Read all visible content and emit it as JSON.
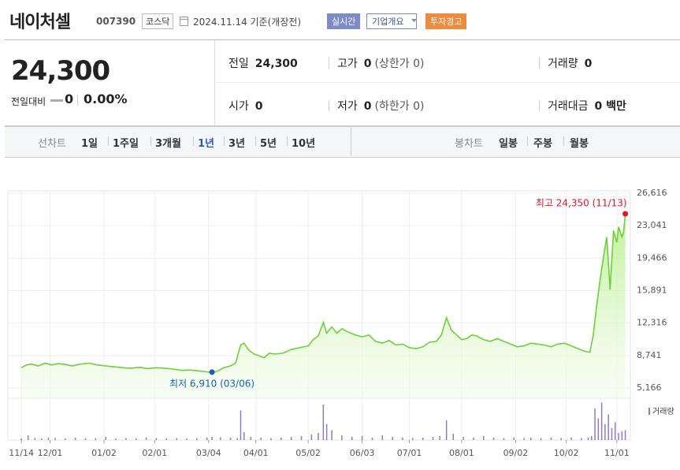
{
  "header": {
    "name": "네이처셀",
    "code": "007390",
    "market": "코스닥",
    "date_note": "2024.11.14 기준(개장전)",
    "buttons": [
      "실시간",
      "기업개요",
      "투자경고"
    ]
  },
  "summary": {
    "price": "24,300",
    "change_label": "전일대비",
    "change": "0",
    "change_pct": "0.00%",
    "cells": [
      {
        "label": "전일",
        "value": "24,300"
      },
      {
        "label": "고가",
        "value": "0",
        "note": "(상한가 0)"
      },
      {
        "label": "거래량",
        "value": "0"
      },
      {
        "label": "시가",
        "value": "0"
      },
      {
        "label": "저가",
        "value": "0",
        "note": "(하한가 0)"
      },
      {
        "label": "거래대금",
        "value": "0 백만"
      }
    ]
  },
  "tabs": {
    "line_label": "선차트",
    "line_periods": [
      "1일",
      "1주일",
      "3개월",
      "1년",
      "3년",
      "5년",
      "10년"
    ],
    "selected": "1년",
    "candle_label": "봉차트",
    "candle_periods": [
      "일봉",
      "주봉",
      "월봉"
    ]
  },
  "chart_data": [
    {
      "type": "line",
      "color": "#6fcf3b",
      "max_label": "최고 24,350 (11/13)",
      "max_color": "#e0162b",
      "min_label": "최저 6,910 (03/06)",
      "min_color": "#1a5fb4",
      "x": [
        0,
        3,
        6,
        10,
        14,
        18,
        22,
        26,
        30,
        35,
        40,
        45,
        50,
        55,
        60,
        65,
        70,
        75,
        80,
        85,
        90,
        95,
        100,
        105,
        110,
        113,
        116,
        120,
        124,
        127,
        130,
        132,
        135,
        138,
        141,
        144,
        147,
        150,
        155,
        160,
        165,
        170,
        173,
        176,
        179,
        181,
        184,
        187,
        190,
        194,
        198,
        202,
        206,
        210,
        214,
        218,
        222,
        226,
        230,
        234,
        238,
        242,
        246,
        249,
        252,
        255,
        258,
        261,
        264,
        267,
        270,
        274,
        278,
        282,
        286,
        290,
        294,
        298,
        302,
        306,
        310,
        314,
        318,
        322,
        326,
        330,
        334,
        337,
        339,
        341,
        343,
        345,
        347,
        349,
        351,
        353,
        354,
        356,
        357,
        358
      ],
      "values": [
        7400,
        7700,
        7800,
        7600,
        7900,
        7700,
        7850,
        7750,
        7600,
        7800,
        7900,
        7700,
        7600,
        7500,
        7400,
        7350,
        7450,
        7300,
        7400,
        7350,
        7250,
        7100,
        7150,
        7050,
        6950,
        6910,
        7000,
        7400,
        7600,
        7900,
        9900,
        10100,
        9300,
        8900,
        8700,
        8500,
        9000,
        8900,
        9000,
        9400,
        9600,
        9800,
        10500,
        10900,
        12400,
        11200,
        11900,
        11200,
        11700,
        11300,
        11000,
        10800,
        11000,
        10300,
        10100,
        10400,
        9900,
        10000,
        9600,
        9500,
        9700,
        10200,
        10300,
        11000,
        12900,
        11500,
        11000,
        10500,
        10600,
        11000,
        10900,
        10500,
        10300,
        10600,
        10300,
        10000,
        9700,
        9800,
        10100,
        10000,
        9900,
        9700,
        10000,
        10100,
        9800,
        9500,
        9200,
        9100,
        11000,
        14200,
        17000,
        19500,
        21800,
        16000,
        22500,
        21200,
        22900,
        21800,
        22300,
        24350
      ],
      "xlim": [
        -8,
        361
      ],
      "xticks": [
        {
          "value": 0,
          "label": "11/14"
        },
        {
          "value": 17,
          "label": "12/01"
        },
        {
          "value": 49,
          "label": "01/02"
        },
        {
          "value": 79,
          "label": "02/01"
        },
        {
          "value": 111,
          "label": "03/04"
        },
        {
          "value": 139,
          "label": "04/01"
        },
        {
          "value": 170,
          "label": "05/02"
        },
        {
          "value": 202,
          "label": "06/03"
        },
        {
          "value": 230,
          "label": "07/01"
        },
        {
          "value": 261,
          "label": "08/01"
        },
        {
          "value": 293,
          "label": "09/02"
        },
        {
          "value": 323,
          "label": "10/02"
        },
        {
          "value": 353,
          "label": "11/01"
        }
      ],
      "ylim": [
        5166,
        26616
      ],
      "yticks": [
        {
          "value": 5166,
          "label": "5,166"
        },
        {
          "value": 8741,
          "label": "8,741"
        },
        {
          "value": 12316,
          "label": "12,316"
        },
        {
          "value": 15891,
          "label": "15,891"
        },
        {
          "value": 19466,
          "label": "19,466"
        },
        {
          "value": 23041,
          "label": "23,041"
        },
        {
          "value": 26616,
          "label": "26,616"
        }
      ],
      "grid": true
    },
    {
      "type": "bar",
      "name": "거래량",
      "color": "#8e7cc3",
      "x": [
        0,
        4,
        8,
        12,
        16,
        20,
        26,
        32,
        38,
        44,
        50,
        56,
        62,
        68,
        74,
        80,
        86,
        92,
        98,
        104,
        110,
        113,
        118,
        124,
        128,
        130,
        132,
        136,
        142,
        148,
        154,
        160,
        166,
        172,
        176,
        179,
        181,
        184,
        190,
        196,
        202,
        208,
        214,
        220,
        226,
        232,
        238,
        244,
        248,
        252,
        256,
        262,
        268,
        274,
        280,
        286,
        292,
        298,
        302,
        308,
        314,
        320,
        326,
        332,
        336,
        338,
        340,
        342,
        344,
        346,
        348,
        350,
        352,
        354,
        356,
        358
      ],
      "values": [
        4,
        12,
        5,
        4,
        6,
        5,
        4,
        6,
        4,
        5,
        8,
        4,
        5,
        4,
        6,
        5,
        4,
        5,
        4,
        5,
        6,
        8,
        7,
        6,
        5,
        75,
        20,
        8,
        6,
        5,
        6,
        8,
        10,
        14,
        18,
        90,
        40,
        25,
        12,
        8,
        10,
        6,
        12,
        8,
        6,
        5,
        6,
        8,
        10,
        50,
        16,
        8,
        6,
        10,
        6,
        5,
        6,
        5,
        6,
        5,
        6,
        5,
        6,
        5,
        6,
        10,
        80,
        55,
        95,
        40,
        65,
        30,
        45,
        18,
        22,
        25
      ],
      "ylim": [
        0,
        100
      ]
    }
  ]
}
